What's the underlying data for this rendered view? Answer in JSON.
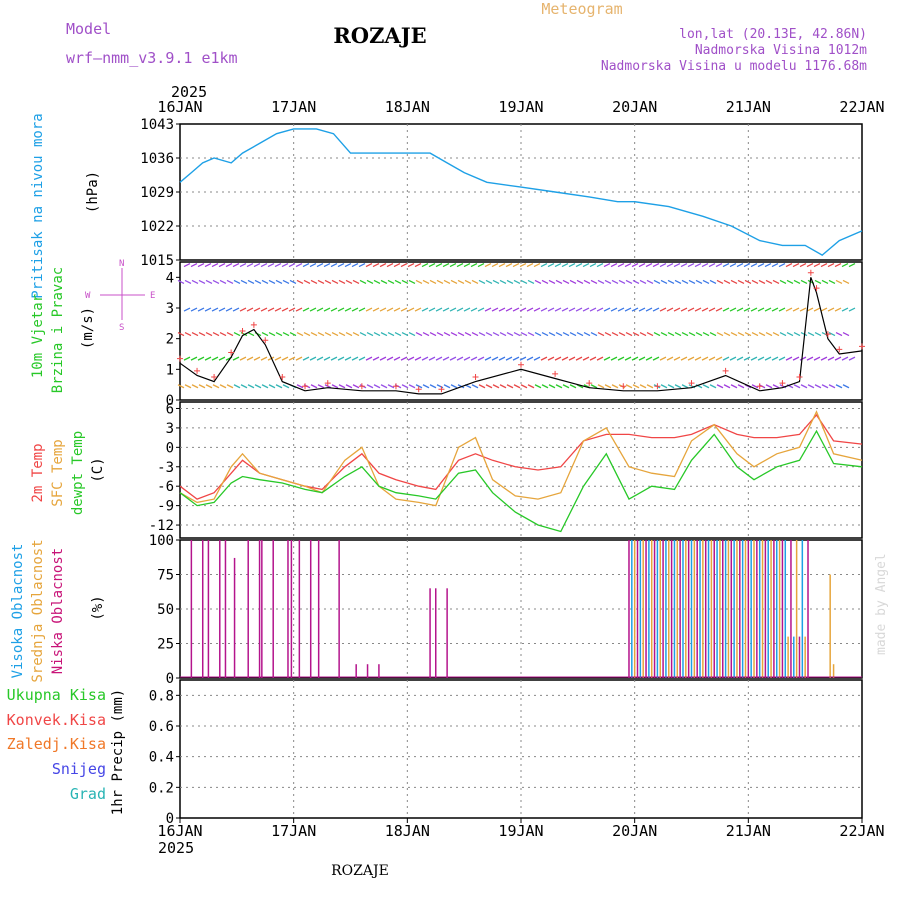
{
  "header": {
    "model_label": "Model",
    "model_name": "wrf—nmm_v3.9.1  e1km",
    "station": "ROZAJE",
    "product": "Meteogram",
    "lonlat": "lon,lat (20.13E, 42.86N)",
    "elevation": "Nadmorska Visina 1012m",
    "model_elevation": "Nadmorska Visina u modelu 1176.68m",
    "year_top": "2025",
    "year_bottom": "2025",
    "footer_station": "ROZAJE",
    "credit": "made by Angel"
  },
  "colors": {
    "pressure": "#1ea0e6",
    "temp2m": "#f04646",
    "sfc_temp": "#e6a53c",
    "dewpt": "#28c828",
    "high_cloud": "#1ea0e6",
    "mid_cloud": "#e6a53c",
    "low_cloud": "#b4148c"
  },
  "x_axis": {
    "ticks": [
      "16JAN",
      "17JAN",
      "18JAN",
      "19JAN",
      "20JAN",
      "21JAN",
      "22JAN"
    ]
  },
  "panels": {
    "pressure": {
      "label_left": "Pritisak na nivou mora",
      "unit": "(hPa)",
      "yticks": [
        "1043",
        "1036",
        "1029",
        "1022",
        "1015"
      ]
    },
    "wind": {
      "label_left_1": "10m Vjetar",
      "label_left_2": "Brzina i Pravac",
      "unit": "(m/s)",
      "compass_w": "W",
      "compass_e": "E",
      "compass_n": "N",
      "compass_s": "S",
      "yticks": [
        "4",
        "3",
        "2",
        "1",
        "0"
      ]
    },
    "temperature": {
      "label_1": "2m Temp",
      "label_2": "SFC Temp",
      "label_3": "dewpt Temp",
      "unit": "(C)",
      "yticks": [
        "6",
        "3",
        "0",
        "-3",
        "-6",
        "-9",
        "-12"
      ]
    },
    "cloud": {
      "label_1": "Visoka Oblacnost",
      "label_2": "Srednja Oblacnost",
      "label_3": "Niska Oblacnost",
      "unit": "(%)",
      "yticks": [
        "100",
        "75",
        "50",
        "25",
        "0"
      ]
    },
    "precip": {
      "label_total": "Ukupna Kisa",
      "label_conv": "Konvek.Kisa",
      "label_frz": "Zaledj.Kisa",
      "label_snow": "Snijeg",
      "label_grad": "Grad",
      "unit": "1hr Precip (mm)",
      "yticks": [
        "0.8",
        "0.6",
        "0.4",
        "0.2",
        "0"
      ]
    }
  },
  "chart_data": [
    {
      "type": "line",
      "panel": "pressure",
      "ylim": [
        1015,
        1043
      ],
      "xlim_days": [
        0,
        6
      ],
      "series": [
        {
          "x": [
            0,
            0.1,
            0.2,
            0.3,
            0.45,
            0.55,
            0.7,
            0.85,
            1.0,
            1.2,
            1.35,
            1.5,
            1.65,
            1.8,
            2.0,
            2.2,
            2.35,
            2.5,
            2.7,
            3.0,
            3.3,
            3.6,
            3.85,
            4.0,
            4.3,
            4.6,
            4.85,
            5.1,
            5.3,
            5.5,
            5.65,
            5.8,
            6.0
          ],
          "y": [
            1031,
            1033,
            1035,
            1036,
            1035,
            1037,
            1039,
            1041,
            1042,
            1042,
            1041,
            1037,
            1037,
            1037,
            1037,
            1037,
            1035,
            1033,
            1031,
            1030,
            1029,
            1028,
            1027,
            1027,
            1026,
            1024,
            1022,
            1019,
            1018,
            1018,
            1016,
            1019,
            1021
          ]
        }
      ]
    },
    {
      "type": "line",
      "panel": "wind",
      "ylim": [
        0,
        4.5
      ],
      "series": [
        {
          "x": [
            0,
            0.15,
            0.3,
            0.45,
            0.55,
            0.65,
            0.75,
            0.9,
            1.1,
            1.3,
            1.6,
            1.9,
            2.1,
            2.3,
            2.6,
            3.0,
            3.3,
            3.6,
            3.9,
            4.2,
            4.5,
            4.8,
            5.1,
            5.3,
            5.45,
            5.55,
            5.6,
            5.7,
            5.8,
            6.0
          ],
          "y": [
            1.2,
            0.8,
            0.6,
            1.4,
            2.1,
            2.3,
            1.8,
            0.6,
            0.3,
            0.4,
            0.3,
            0.3,
            0.2,
            0.2,
            0.6,
            1.0,
            0.7,
            0.4,
            0.3,
            0.3,
            0.4,
            0.8,
            0.3,
            0.4,
            0.6,
            4.0,
            3.5,
            2.0,
            1.5,
            1.6
          ]
        }
      ]
    },
    {
      "type": "line",
      "panel": "temperature",
      "ylim": [
        -14,
        7
      ],
      "series": [
        {
          "x": [
            0,
            0.15,
            0.3,
            0.45,
            0.55,
            0.7,
            0.9,
            1.1,
            1.25,
            1.45,
            1.6,
            1.75,
            1.9,
            2.1,
            2.25,
            2.45,
            2.6,
            2.75,
            2.95,
            3.15,
            3.35,
            3.55,
            3.75,
            3.95,
            4.15,
            4.35,
            4.5,
            4.7,
            4.9,
            5.05,
            5.25,
            5.45,
            5.6,
            5.75,
            6.0
          ],
          "y": [
            -6,
            -8,
            -7,
            -4,
            -2,
            -4,
            -5,
            -6,
            -6.5,
            -3,
            -1,
            -4,
            -5,
            -6,
            -6.5,
            -2,
            -1,
            -2,
            -3,
            -3.5,
            -3,
            1,
            2,
            2,
            1.5,
            1.5,
            2,
            3.5,
            2,
            1.5,
            1.5,
            2,
            5,
            1,
            0.5
          ]
        },
        {
          "x": [
            0,
            0.15,
            0.3,
            0.45,
            0.55,
            0.7,
            0.9,
            1.1,
            1.25,
            1.45,
            1.6,
            1.75,
            1.9,
            2.1,
            2.25,
            2.45,
            2.6,
            2.75,
            2.95,
            3.15,
            3.35,
            3.55,
            3.75,
            3.95,
            4.15,
            4.35,
            4.5,
            4.7,
            4.9,
            5.05,
            5.25,
            5.45,
            5.6,
            5.75,
            6.0
          ],
          "y": [
            -7,
            -8.5,
            -8,
            -3,
            -1,
            -4,
            -5,
            -6,
            -7,
            -2,
            0,
            -6,
            -8,
            -8.5,
            -9,
            0,
            1.5,
            -5,
            -7.5,
            -8,
            -7,
            1,
            3,
            -3,
            -4,
            -4.5,
            1,
            3.5,
            -1,
            -3,
            -1,
            0,
            5.5,
            -1,
            -2
          ]
        },
        {
          "x": [
            0,
            0.15,
            0.3,
            0.45,
            0.55,
            0.7,
            0.9,
            1.1,
            1.25,
            1.45,
            1.6,
            1.75,
            1.9,
            2.1,
            2.25,
            2.45,
            2.6,
            2.75,
            2.95,
            3.15,
            3.35,
            3.55,
            3.75,
            3.95,
            4.15,
            4.35,
            4.5,
            4.7,
            4.9,
            5.05,
            5.25,
            5.45,
            5.6,
            5.75,
            6.0
          ],
          "y": [
            -7,
            -9,
            -8.5,
            -5.5,
            -4.5,
            -5,
            -5.5,
            -6.5,
            -7,
            -4.5,
            -3,
            -6,
            -7,
            -7.5,
            -8,
            -4,
            -3.5,
            -7,
            -10,
            -12,
            -13,
            -6,
            -1,
            -8,
            -6,
            -6.5,
            -2,
            2,
            -3,
            -5,
            -3,
            -2,
            2.5,
            -2.5,
            -3
          ]
        }
      ]
    },
    {
      "type": "bar",
      "panel": "cloud",
      "ylim": [
        0,
        100
      ],
      "series": [
        {
          "x": [
            0.1,
            0.2,
            0.25,
            0.35,
            0.4,
            0.48,
            0.6,
            0.7,
            0.72,
            0.82,
            0.95,
            0.98,
            1.05,
            1.15,
            1.22,
            1.4,
            1.55,
            1.65,
            1.75,
            2.2,
            2.25,
            2.35
          ],
          "y": [
            100,
            100,
            100,
            100,
            100,
            87,
            100,
            100,
            100,
            100,
            100,
            100,
            100,
            100,
            100,
            100,
            10,
            10,
            10,
            65,
            65,
            65
          ]
        }
      ]
    },
    {
      "type": "bar",
      "panel": "precip",
      "ylim": [
        0,
        0.9
      ],
      "series": []
    }
  ]
}
